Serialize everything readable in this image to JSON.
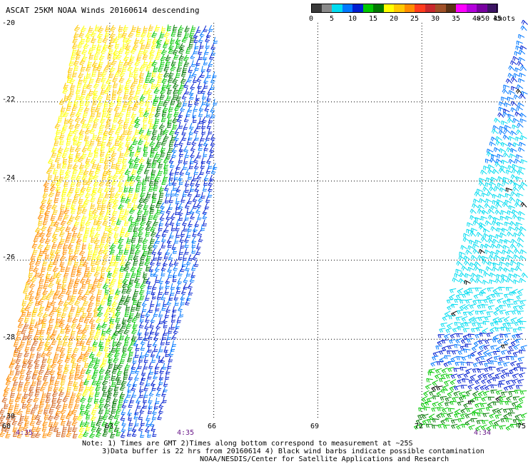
{
  "title": "ASCAT 25KM NOAA Winds 20160614 descending",
  "colorbar": {
    "labels": [
      "0",
      "5",
      "10",
      "15",
      "20",
      "25",
      "30",
      "35",
      "40",
      "45",
      ">50 knots"
    ],
    "colors": [
      "#3a3a3a",
      "#8a8a8a",
      "#00dcf0",
      "#0078ff",
      "#001ed0",
      "#00c800",
      "#007800",
      "#ffff00",
      "#ffc800",
      "#ff8c00",
      "#ff3c1e",
      "#c8282d",
      "#a05028",
      "#5a3214",
      "#ff00ff",
      "#b400dc",
      "#7800a0",
      "#3c1464"
    ]
  },
  "axes": {
    "lat_labels": [
      "-20",
      "-22",
      "-24",
      "-26",
      "-28",
      "-30"
    ],
    "lon_labels": [
      "60",
      "63",
      "66",
      "69",
      "72",
      "75"
    ]
  },
  "time_labels": [
    "4:35",
    "4:35",
    "4:34"
  ],
  "notes": {
    "line1": "Note: 1) Times are GMT 2)Times along bottom correspond to measurement at ~25S",
    "line2": "3)Data buffer is 22 hrs from 20160614 4) Black wind barbs indicate possible contamination",
    "line3": "NOAA/NESDIS/Center for Satellite Applications and Research"
  }
}
